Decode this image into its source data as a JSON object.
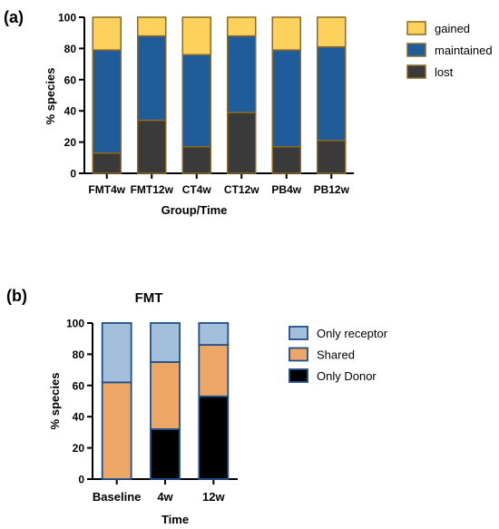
{
  "chart_data": [
    {
      "panel_label": "(a)",
      "type": "bar",
      "stacked": true,
      "title": "",
      "xlabel": "Group/Time",
      "ylabel": "% species",
      "ylim": [
        0,
        100
      ],
      "yticks": [
        0,
        20,
        40,
        60,
        80,
        100
      ],
      "categories": [
        "FMT4w",
        "FMT12w",
        "CT4w",
        "CT12w",
        "PB4w",
        "PB12w"
      ],
      "series": [
        {
          "name": "lost",
          "color": "#3a3a3a",
          "values": [
            13,
            34,
            17,
            39,
            17,
            21
          ]
        },
        {
          "name": "maintained",
          "color": "#1f5c99",
          "values": [
            66,
            54,
            59,
            49,
            62,
            60
          ]
        },
        {
          "name": "gained",
          "color": "#fdd25c",
          "values": [
            21,
            12,
            24,
            12,
            21,
            19
          ]
        }
      ],
      "legend_position": "right"
    },
    {
      "panel_label": "(b)",
      "type": "bar",
      "stacked": true,
      "title": "FMT",
      "xlabel": "Time",
      "ylabel": "% species",
      "ylim": [
        0,
        100
      ],
      "yticks": [
        0,
        20,
        40,
        60,
        80,
        100
      ],
      "categories": [
        "Baseline",
        "4w",
        "12w"
      ],
      "series": [
        {
          "name": "Only Donor",
          "color": "#000000",
          "values": [
            0,
            32,
            53
          ]
        },
        {
          "name": "Shared",
          "color": "#eda665",
          "values": [
            62,
            43,
            33
          ]
        },
        {
          "name": "Only receptor",
          "color": "#a3bfdc",
          "values": [
            38,
            25,
            14
          ]
        }
      ],
      "legend_position": "right"
    }
  ]
}
